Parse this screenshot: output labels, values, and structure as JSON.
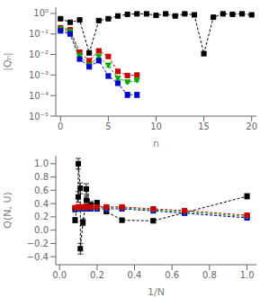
{
  "chart_data": [
    {
      "type": "line",
      "log": "y",
      "x_label": "n",
      "y_label": "|Qₙ|",
      "xlim": [
        -0.5,
        20.5
      ],
      "ylim": [
        1e-05,
        2.0
      ],
      "xticks": [
        0,
        5,
        10,
        15,
        20
      ],
      "yticks": [
        {
          "value": 1e-05,
          "label": "10⁻⁵"
        },
        {
          "value": 0.0001,
          "label": "10⁻⁴"
        },
        {
          "value": 0.001,
          "label": "10⁻³"
        },
        {
          "value": 0.01,
          "label": "10⁻²"
        },
        {
          "value": 0.1,
          "label": "10⁻¹"
        },
        {
          "value": 1,
          "label": "10⁰"
        }
      ],
      "series": [
        {
          "color": "#000000",
          "marker": "square",
          "line_style": "dashed",
          "x": [
            0,
            1,
            2,
            3,
            4,
            5,
            6,
            7,
            8,
            9,
            10,
            11,
            12,
            13,
            14,
            15,
            16,
            17,
            18,
            19,
            20
          ],
          "values": [
            0.55,
            0.37,
            0.48,
            0.012,
            0.45,
            0.55,
            0.75,
            0.9,
            0.95,
            0.95,
            0.8,
            0.95,
            0.75,
            0.95,
            0.85,
            0.011,
            0.65,
            0.95,
            0.9,
            0.95,
            0.85
          ],
          "errors": [
            0.04,
            0.03,
            0.04,
            0.002,
            0.04,
            0.04,
            0.05,
            0.05,
            0.05,
            0.05,
            0.05,
            0.05,
            0.05,
            0.05,
            0.05,
            0.002,
            0.05,
            0.05,
            0.05,
            0.05,
            0.05
          ]
        },
        {
          "color": "#cc0000",
          "marker": "square",
          "line_style": "dashed",
          "x": [
            0,
            1,
            2,
            3,
            4,
            5,
            6,
            7,
            8
          ],
          "values": [
            0.2,
            0.16,
            0.013,
            0.005,
            0.015,
            0.008,
            0.0015,
            0.00095,
            0.001
          ],
          "errors": [
            0.015,
            0.012,
            0.002,
            0.001,
            0.002,
            0.001,
            0.0002,
            0.0001,
            0.0001
          ]
        },
        {
          "color": "#00aa00",
          "marker": "triangle-down",
          "line_style": "dashed",
          "x": [
            0,
            1,
            2,
            3,
            4,
            5,
            6,
            7,
            8
          ],
          "values": [
            0.17,
            0.13,
            0.009,
            0.003,
            0.008,
            0.003,
            0.0007,
            0.00045,
            0.00055
          ],
          "errors": [
            0.012,
            0.01,
            0.001,
            0.0005,
            0.001,
            0.0005,
            0.0001,
            5e-05,
            6e-05
          ]
        },
        {
          "color": "#0000cc",
          "marker": "square",
          "line_style": "dashed",
          "x": [
            0,
            1,
            2,
            3,
            4,
            5,
            6,
            7,
            8
          ],
          "values": [
            0.14,
            0.1,
            0.006,
            0.0025,
            0.005,
            0.0009,
            0.0004,
            0.00011,
            0.00011
          ],
          "errors": [
            0.01,
            0.01,
            0.001,
            0.0003,
            0.0007,
            0.0002,
            8e-05,
            3e-05,
            3e-05
          ]
        }
      ]
    },
    {
      "type": "line",
      "x_label": "1/N",
      "y_label": "Q(N, U)",
      "xlim": [
        -0.02,
        1.05
      ],
      "ylim": [
        -0.52,
        1.12
      ],
      "xticks": [
        {
          "value": 0,
          "label": "0.0"
        },
        {
          "value": 0.2,
          "label": "0.2"
        },
        {
          "value": 0.4,
          "label": "0.4"
        },
        {
          "value": 0.6,
          "label": "0.6"
        },
        {
          "value": 0.8,
          "label": "0.8"
        },
        {
          "value": 1.0,
          "label": "1.0"
        }
      ],
      "yticks": [
        {
          "value": -0.4,
          "label": "−0.4"
        },
        {
          "value": -0.2,
          "label": "−0.2"
        },
        {
          "value": 0,
          "label": "0.0"
        },
        {
          "value": 0.2,
          "label": "0.2"
        },
        {
          "value": 0.4,
          "label": "0.4"
        },
        {
          "value": 0.6,
          "label": "0.6"
        },
        {
          "value": 0.8,
          "label": "0.8"
        },
        {
          "value": 1.0,
          "label": "1.0"
        }
      ],
      "series": [
        {
          "color": "#000000",
          "marker": "square",
          "line_style": "dashed",
          "x": [
            0.083,
            0.1,
            0.1,
            0.111,
            0.111,
            0.125,
            0.143,
            0.143,
            0.167,
            0.2,
            0.25,
            0.333,
            0.5,
            1.0
          ],
          "values": [
            0.15,
            0.5,
            1.0,
            0.63,
            -0.28,
            0.12,
            0.45,
            0.62,
            0.38,
            0.41,
            0.28,
            0.15,
            0.14,
            0.51
          ],
          "errors": [
            0.04,
            0.08,
            0.08,
            0.08,
            0.08,
            0.05,
            0.06,
            0.08,
            0.05,
            0.04,
            0.03,
            0.03,
            0.03,
            0.04
          ]
        },
        {
          "color": "#0000cc",
          "marker": "square",
          "line_style": "dashed",
          "x": [
            0.083,
            0.1,
            0.111,
            0.125,
            0.143,
            0.167,
            0.2,
            0.25,
            0.333,
            0.5,
            0.667,
            1.0
          ],
          "values": [
            0.31,
            0.32,
            0.32,
            0.32,
            0.32,
            0.32,
            0.32,
            0.32,
            0.32,
            0.29,
            0.255,
            0.185
          ],
          "errors": [
            0.008,
            0.008,
            0.008,
            0.008,
            0.008,
            0.008,
            0.008,
            0.008,
            0.008,
            0.008,
            0.008,
            0.008
          ]
        },
        {
          "color": "#00aa00",
          "marker": "triangle-down",
          "line_style": "dashed",
          "x": [
            0.083,
            0.1,
            0.111,
            0.125,
            0.143,
            0.167,
            0.2,
            0.25,
            0.333,
            0.5,
            0.667,
            1.0
          ],
          "values": [
            0.325,
            0.335,
            0.335,
            0.335,
            0.335,
            0.335,
            0.335,
            0.335,
            0.335,
            0.305,
            0.275,
            0.205
          ],
          "errors": [
            0.008,
            0.008,
            0.008,
            0.008,
            0.008,
            0.008,
            0.008,
            0.008,
            0.008,
            0.008,
            0.008,
            0.008
          ]
        },
        {
          "color": "#cc0000",
          "marker": "square",
          "line_style": "dashed",
          "x": [
            0.083,
            0.1,
            0.111,
            0.125,
            0.143,
            0.167,
            0.2,
            0.25,
            0.333,
            0.5,
            0.667,
            1.0
          ],
          "values": [
            0.34,
            0.35,
            0.35,
            0.35,
            0.35,
            0.35,
            0.35,
            0.35,
            0.35,
            0.32,
            0.295,
            0.225
          ],
          "errors": [
            0.008,
            0.008,
            0.008,
            0.008,
            0.008,
            0.008,
            0.008,
            0.008,
            0.008,
            0.008,
            0.008,
            0.008
          ]
        }
      ]
    }
  ]
}
